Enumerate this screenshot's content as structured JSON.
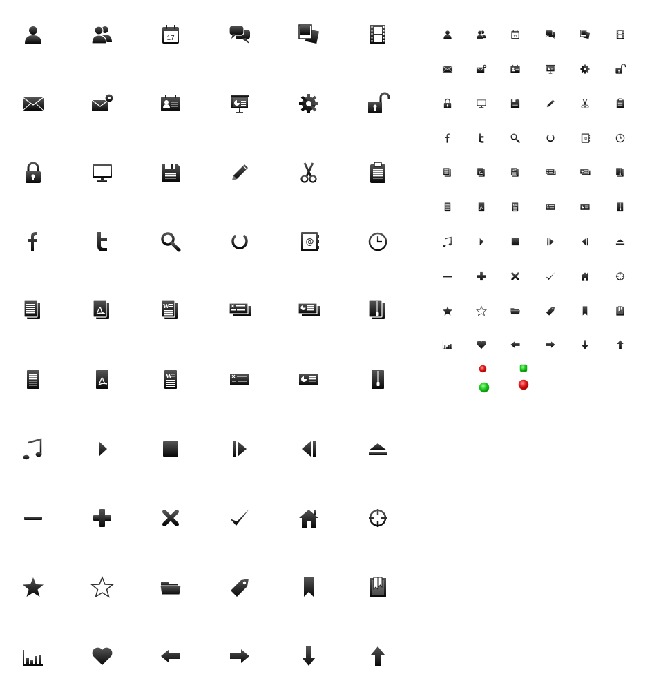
{
  "icon_set": {
    "large_columns": 6,
    "small_columns": 6,
    "icons": [
      "user-icon",
      "users-icon",
      "calendar-icon",
      "chat-icon",
      "photos-icon",
      "film-icon",
      "mail-icon",
      "mail-settings-icon",
      "contact-card-icon",
      "presentation-icon",
      "gear-icon",
      "unlock-icon",
      "lock-icon",
      "monitor-icon",
      "save-icon",
      "pencil-icon",
      "scissors-icon",
      "clipboard-icon",
      "facebook-icon",
      "twitter-icon",
      "search-icon",
      "power-icon",
      "address-book-icon",
      "clock-icon",
      "documents-icon",
      "pdf-documents-icon",
      "word-documents-icon",
      "spreadsheet-documents-icon",
      "slides-documents-icon",
      "zip-documents-icon",
      "document-icon",
      "pdf-icon",
      "word-icon",
      "spreadsheet-icon",
      "slides-icon",
      "zip-icon",
      "music-icon",
      "play-icon",
      "stop-icon",
      "next-icon",
      "previous-icon",
      "eject-icon",
      "minus-icon",
      "plus-icon",
      "close-icon",
      "checkmark-icon",
      "home-icon",
      "crosshair-icon",
      "star-icon",
      "star-outline-icon",
      "folder-icon",
      "tag-icon",
      "bookmark-icon",
      "bookmarks-icon",
      "bar-chart-icon",
      "heart-icon",
      "arrow-left-icon",
      "arrow-right-icon",
      "arrow-down-icon",
      "arrow-up-icon"
    ],
    "calendar_day": "17",
    "status_dots": [
      {
        "name": "red-dot-small",
        "color": "#e01818"
      },
      {
        "name": "green-square-small",
        "color": "#1fc81f"
      },
      {
        "name": "green-dot-large",
        "color": "#1fc81f"
      },
      {
        "name": "red-dot-large",
        "color": "#e01818"
      }
    ]
  }
}
